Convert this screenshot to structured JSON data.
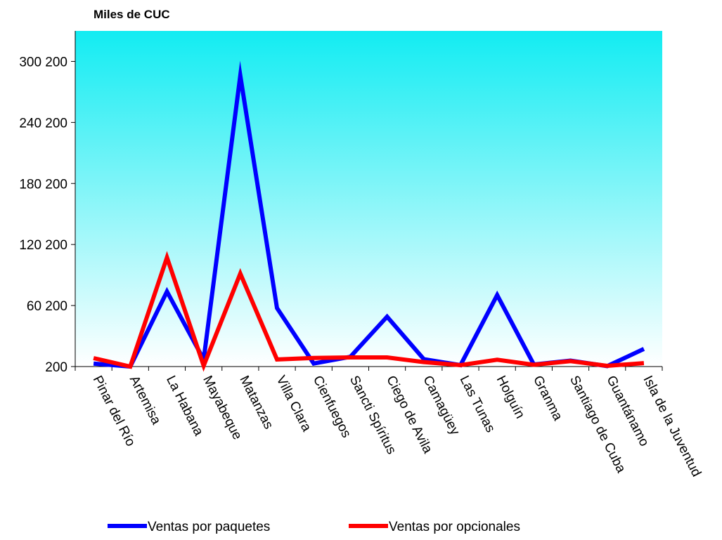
{
  "chart_data": {
    "type": "line",
    "unit_label": "Miles de CUC",
    "categories": [
      "Pinar del Río",
      "Artemisa",
      "La Habana",
      "Mayabeque",
      "Matanzas",
      "Villa Clara",
      "Cienfuegos",
      "Sancti Spíritus",
      "Ciego de Avila",
      "Camagüey",
      "Las Tunas",
      "Holguín",
      "Granma",
      "Santiago de Cuba",
      "Guantánamo",
      "Isla de la Juventud"
    ],
    "series": [
      {
        "name": "Ventas por paquetes",
        "color": "#0000ff",
        "values": [
          3200,
          200,
          73900,
          7100,
          286200,
          57700,
          3200,
          9800,
          49200,
          7500,
          1600,
          70500,
          2300,
          6100,
          600,
          17500
        ]
      },
      {
        "name": "Ventas por opcionales",
        "color": "#ff0000",
        "values": [
          8500,
          200,
          107400,
          1000,
          91600,
          7200,
          8600,
          9200,
          9200,
          4600,
          1600,
          6900,
          1900,
          5500,
          900,
          3600
        ]
      }
    ],
    "yticks": [
      200,
      60200,
      120200,
      180200,
      240200,
      300200
    ],
    "ytick_labels": [
      "200",
      "60 200",
      "120 200",
      "180 200",
      "240 200",
      "300 200"
    ],
    "ylim": [
      200,
      330200
    ],
    "plot_background": [
      "#12ecf2",
      "#ffffff"
    ],
    "grid": false,
    "legend_position": "bottom"
  }
}
